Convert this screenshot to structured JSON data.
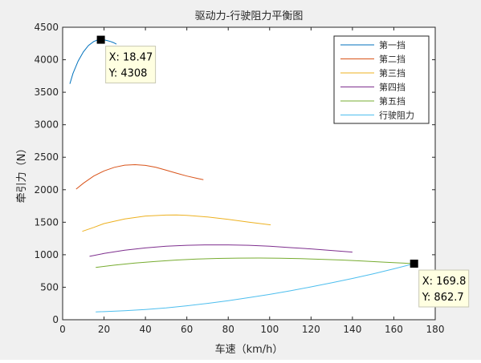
{
  "chart_data": {
    "type": "line",
    "title": "驱动力-行驶阻力平衡图",
    "xlabel": "车速（km/h）",
    "ylabel": "牵引力（N）",
    "xlim": [
      0,
      180
    ],
    "ylim": [
      0,
      4500
    ],
    "xticks": [
      0,
      20,
      40,
      60,
      80,
      100,
      120,
      140,
      160,
      180
    ],
    "yticks": [
      0,
      500,
      1000,
      1500,
      2000,
      2500,
      3000,
      3500,
      4000,
      4500
    ],
    "grid": false,
    "legend_position": "top-right",
    "series": [
      {
        "name": "第一挡",
        "color": "#0072bd",
        "x": [
          3.5,
          5,
          7.5,
          10,
          12.5,
          15,
          17,
          18.47,
          20,
          21.5,
          23,
          24.5,
          26
        ],
        "y": [
          3630,
          3790,
          3980,
          4120,
          4220,
          4280,
          4305,
          4308,
          4305,
          4295,
          4282,
          4265,
          4240
        ]
      },
      {
        "name": "第二挡",
        "color": "#d95319",
        "x": [
          6.5,
          10,
          15,
          20,
          25,
          30,
          35,
          40,
          45,
          50,
          55,
          60,
          65,
          68
        ],
        "y": [
          2010,
          2100,
          2210,
          2290,
          2345,
          2378,
          2385,
          2375,
          2345,
          2300,
          2255,
          2210,
          2175,
          2155
        ]
      },
      {
        "name": "第三挡",
        "color": "#edb120",
        "x": [
          9.5,
          15,
          20,
          30,
          40,
          50,
          55,
          60,
          70,
          80,
          90,
          100.5
        ],
        "y": [
          1360,
          1420,
          1480,
          1550,
          1595,
          1610,
          1612,
          1605,
          1580,
          1545,
          1500,
          1460
        ]
      },
      {
        "name": "第四挡",
        "color": "#7e2f8e",
        "x": [
          13,
          20,
          30,
          40,
          50,
          60,
          70,
          80,
          90,
          100,
          110,
          120,
          130,
          140
        ],
        "y": [
          975,
          1020,
          1070,
          1105,
          1130,
          1145,
          1152,
          1152,
          1145,
          1130,
          1110,
          1090,
          1065,
          1040
        ]
      },
      {
        "name": "第五挡",
        "color": "#77ac30",
        "x": [
          16,
          25,
          35,
          45,
          55,
          65,
          75,
          85,
          95,
          105,
          115,
          125,
          135,
          145,
          155,
          165,
          170
        ],
        "y": [
          805,
          840,
          872,
          898,
          918,
          933,
          943,
          948,
          949,
          946,
          940,
          930,
          918,
          903,
          887,
          870,
          862
        ]
      },
      {
        "name": "行驶阻力",
        "color": "#4dbeee",
        "x": [
          16,
          30,
          40,
          50,
          60,
          70,
          80,
          90,
          100,
          110,
          120,
          130,
          140,
          150,
          160,
          169.8
        ],
        "y": [
          120,
          138,
          158,
          183,
          215,
          252,
          293,
          340,
          390,
          445,
          505,
          568,
          635,
          707,
          783,
          862.7
        ]
      }
    ],
    "annotations": [
      {
        "x": 18.47,
        "y": 4308,
        "text_x": "X: 18.47",
        "text_y": "Y: 4308"
      },
      {
        "x": 169.8,
        "y": 862.7,
        "text_x": "X: 169.8",
        "text_y": "Y: 862.7"
      }
    ]
  }
}
